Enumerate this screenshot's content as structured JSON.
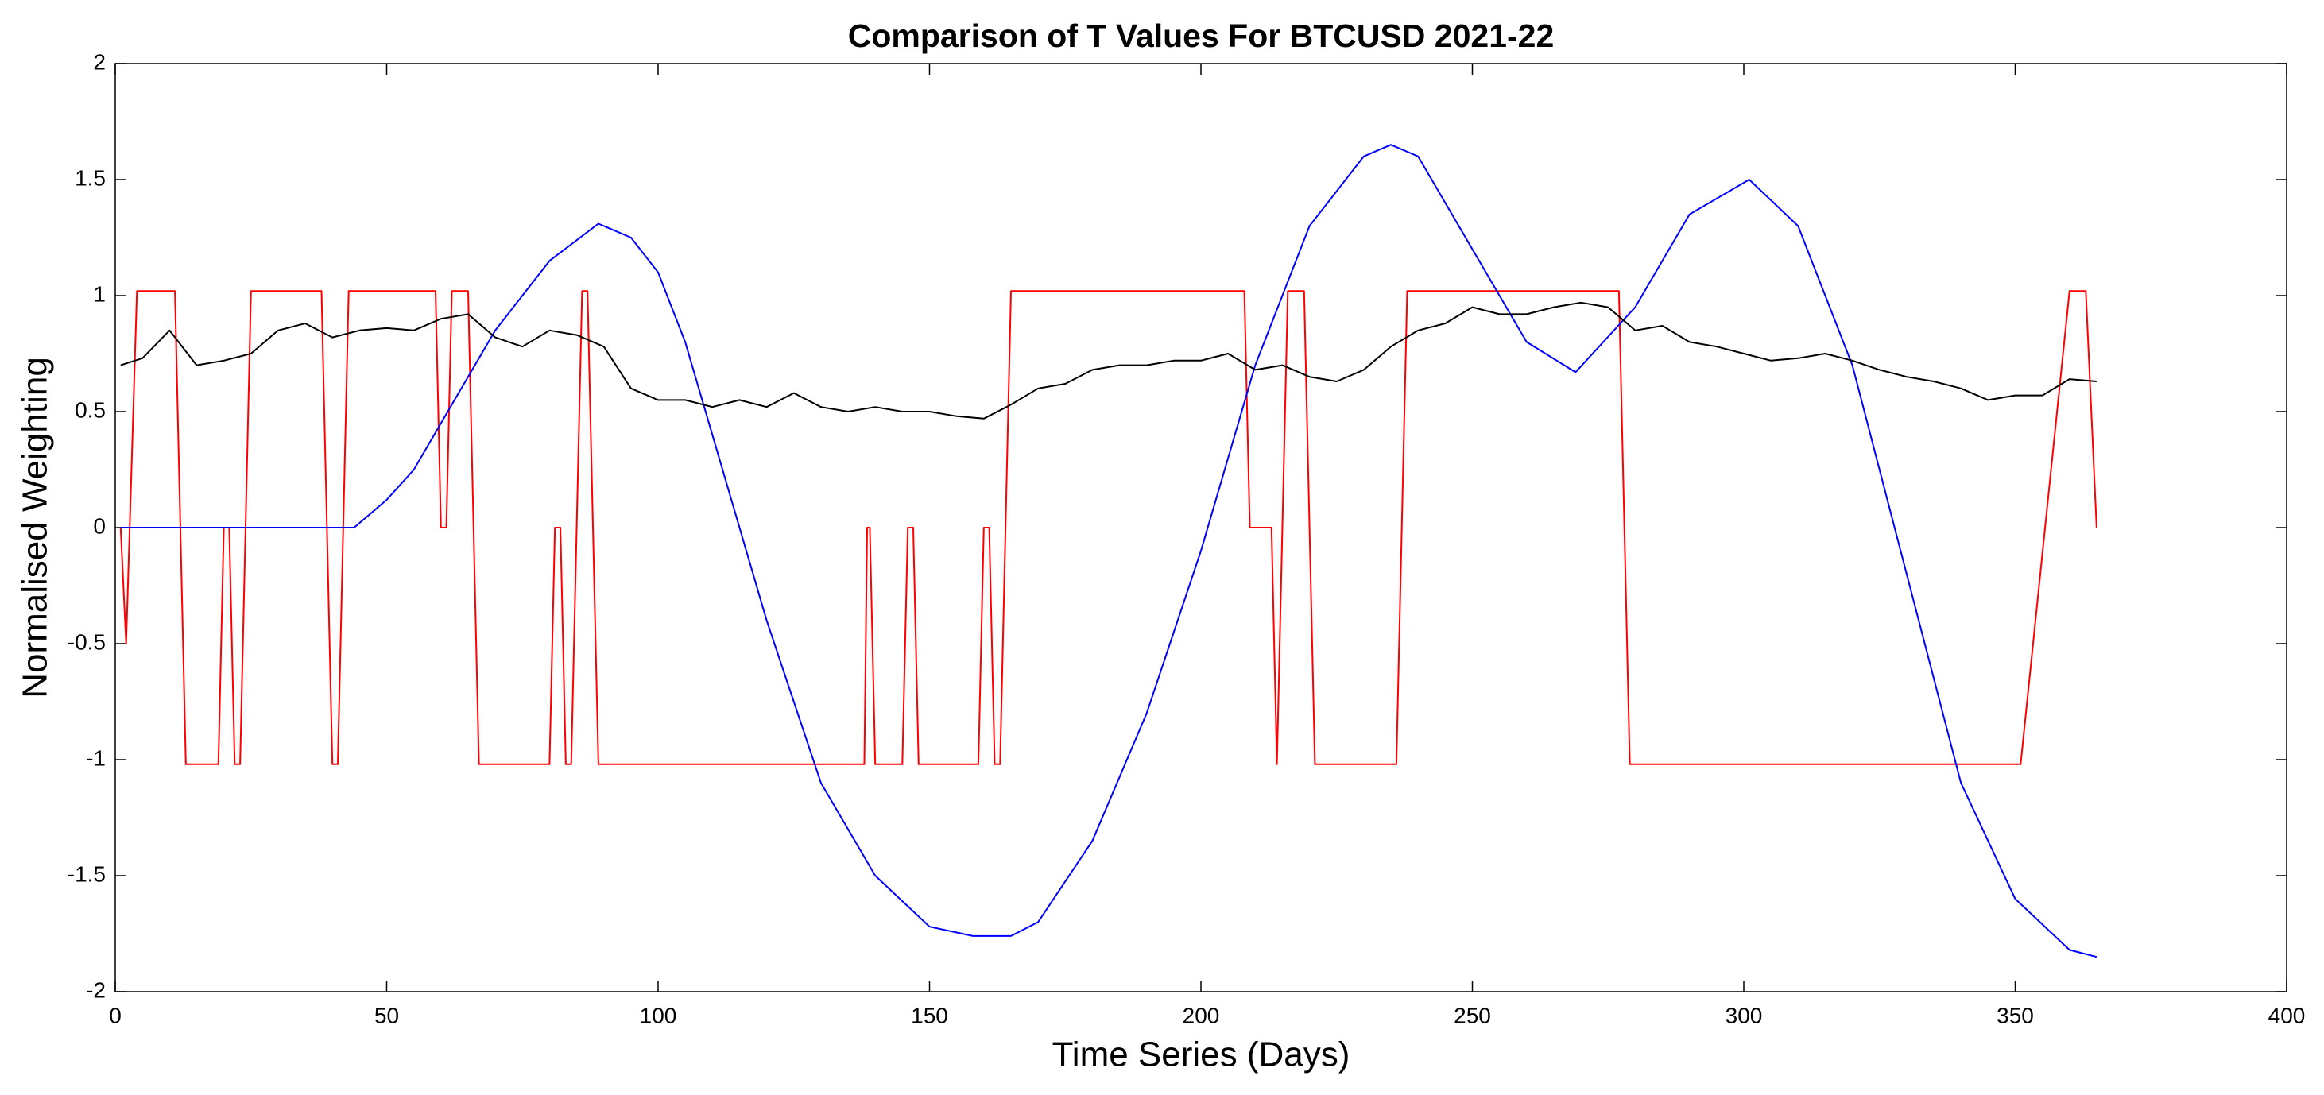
{
  "chart_data": {
    "type": "line",
    "title": "Comparison of T Values For BTCUSD 2021-22",
    "x_label": "Time Series (Days)",
    "y_label": "Normalised Weighting",
    "xlim": [
      0,
      400
    ],
    "xticks": [
      0,
      50,
      100,
      150,
      200,
      250,
      300,
      350,
      400
    ],
    "ylim": [
      -2,
      2
    ],
    "yticks": [
      -2,
      -1.5,
      -1,
      -0.5,
      0,
      0.5,
      1,
      1.5,
      2
    ],
    "grid": false,
    "series": [
      {
        "color": "#ff0000",
        "x": [
          1,
          2,
          4,
          11,
          13,
          19,
          20,
          21,
          22,
          23,
          25,
          38,
          40,
          41,
          43,
          59,
          60,
          61,
          62,
          65,
          67,
          80,
          81,
          82,
          83,
          84,
          86,
          87,
          89,
          138,
          138.5,
          139,
          140,
          145,
          146,
          147,
          148,
          159,
          160,
          161,
          162,
          163,
          165,
          208,
          209,
          213,
          214,
          216,
          219,
          221,
          236,
          238,
          277,
          279,
          351,
          360,
          363,
          365
        ],
        "values": [
          0,
          -0.5,
          1.02,
          1.02,
          -1.02,
          -1.02,
          0,
          0,
          -1.02,
          -1.02,
          1.02,
          1.02,
          -1.02,
          -1.02,
          1.02,
          1.02,
          0,
          0,
          1.02,
          1.02,
          -1.02,
          -1.02,
          0,
          0,
          -1.02,
          -1.02,
          1.02,
          1.02,
          -1.02,
          -1.02,
          0,
          0,
          -1.02,
          -1.02,
          0,
          0,
          -1.02,
          -1.02,
          0,
          0,
          -1.02,
          -1.02,
          1.02,
          1.02,
          0,
          0,
          -1.02,
          1.02,
          1.02,
          -1.02,
          -1.02,
          1.02,
          1.02,
          -1.02,
          -1.02,
          1.02,
          1.02,
          0
        ]
      },
      {
        "color": "#0000ff",
        "x": [
          1,
          44,
          50,
          55,
          60,
          70,
          80,
          89,
          95,
          100,
          105,
          110,
          120,
          130,
          140,
          150,
          158,
          165,
          170,
          180,
          190,
          200,
          210,
          220,
          230,
          235,
          240,
          250,
          260,
          269,
          280,
          290,
          301,
          310,
          320,
          330,
          340,
          350,
          360,
          365
        ],
        "values": [
          0,
          0,
          0.12,
          0.25,
          0.45,
          0.85,
          1.15,
          1.31,
          1.25,
          1.1,
          0.8,
          0.4,
          -0.4,
          -1.1,
          -1.5,
          -1.72,
          -1.76,
          -1.76,
          -1.7,
          -1.35,
          -0.8,
          -0.1,
          0.7,
          1.3,
          1.6,
          1.65,
          1.6,
          1.2,
          0.8,
          0.67,
          0.95,
          1.35,
          1.5,
          1.3,
          0.7,
          -0.2,
          -1.1,
          -1.6,
          -1.82,
          -1.85
        ]
      },
      {
        "color": "#000000",
        "x": [
          1,
          5,
          10,
          15,
          20,
          25,
          30,
          35,
          40,
          45,
          50,
          55,
          60,
          65,
          70,
          75,
          80,
          85,
          90,
          95,
          100,
          105,
          110,
          115,
          120,
          125,
          130,
          135,
          140,
          145,
          150,
          155,
          160,
          165,
          170,
          175,
          180,
          185,
          190,
          195,
          200,
          205,
          210,
          215,
          220,
          225,
          230,
          235,
          240,
          245,
          250,
          255,
          260,
          265,
          270,
          275,
          280,
          285,
          290,
          295,
          300,
          305,
          310,
          315,
          320,
          325,
          330,
          335,
          340,
          345,
          350,
          355,
          360,
          365
        ],
        "values": [
          0.7,
          0.73,
          0.85,
          0.7,
          0.72,
          0.75,
          0.85,
          0.88,
          0.82,
          0.85,
          0.86,
          0.85,
          0.9,
          0.92,
          0.82,
          0.78,
          0.85,
          0.83,
          0.78,
          0.6,
          0.55,
          0.55,
          0.52,
          0.55,
          0.52,
          0.58,
          0.52,
          0.5,
          0.52,
          0.5,
          0.5,
          0.48,
          0.47,
          0.53,
          0.6,
          0.62,
          0.68,
          0.7,
          0.7,
          0.72,
          0.72,
          0.75,
          0.68,
          0.7,
          0.65,
          0.63,
          0.68,
          0.78,
          0.85,
          0.88,
          0.95,
          0.92,
          0.92,
          0.95,
          0.97,
          0.95,
          0.85,
          0.87,
          0.8,
          0.78,
          0.75,
          0.72,
          0.73,
          0.75,
          0.72,
          0.68,
          0.65,
          0.63,
          0.6,
          0.55,
          0.57,
          0.57,
          0.64,
          0.63
        ]
      }
    ]
  }
}
